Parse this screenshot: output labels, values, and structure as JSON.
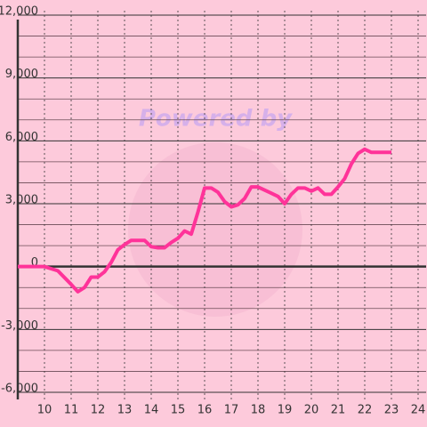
{
  "chart_data": {
    "type": "line",
    "watermark": "Powered by",
    "x": [
      9,
      10,
      10.5,
      11,
      11.25,
      11.5,
      11.75,
      12,
      12.25,
      12.5,
      12.75,
      13,
      13.25,
      13.5,
      13.75,
      14,
      14.25,
      14.5,
      14.75,
      15,
      15.25,
      15.5,
      15.75,
      16,
      16.25,
      16.5,
      16.75,
      17,
      17.25,
      17.5,
      17.75,
      18,
      18.25,
      18.5,
      18.75,
      19,
      19.25,
      19.5,
      19.75,
      20,
      20.25,
      20.5,
      20.75,
      21,
      21.25,
      21.5,
      21.75,
      22,
      22.25,
      22.5,
      22.75,
      23
    ],
    "series": [
      {
        "color": "#ff3399",
        "values": [
          0,
          0,
          -200,
          -850,
          -1200,
          -1000,
          -500,
          -500,
          -250,
          200,
          800,
          1050,
          1250,
          1250,
          1250,
          950,
          900,
          900,
          1150,
          1350,
          1700,
          1550,
          2600,
          3750,
          3750,
          3550,
          3100,
          2850,
          2950,
          3250,
          3800,
          3800,
          3650,
          3500,
          3350,
          3000,
          3450,
          3750,
          3750,
          3600,
          3750,
          3450,
          3450,
          3800,
          4200,
          4900,
          5400,
          5600,
          5450,
          5450,
          5450,
          5450
        ]
      }
    ],
    "xlim": [
      9,
      24.3
    ],
    "ylim": [
      -6000,
      12000
    ],
    "xticks": [
      10,
      11,
      12,
      13,
      14,
      15,
      16,
      17,
      18,
      19,
      20,
      21,
      22,
      23,
      24
    ],
    "yticks": [
      {
        "value": -6000,
        "label": "-6,000"
      },
      {
        "value": -3000,
        "label": "-3,000"
      },
      0,
      {
        "value": 3000,
        "label": "3,000"
      },
      {
        "value": 6000,
        "label": "6,000"
      },
      {
        "value": 9000,
        "label": "9,000"
      },
      {
        "value": 12000,
        "label": "12,000"
      }
    ],
    "minor_yticks": [
      -5000,
      -4000,
      -2000,
      -1000,
      1000,
      2000,
      4000,
      5000,
      7000,
      8000,
      10000,
      11000
    ],
    "grid": true
  }
}
